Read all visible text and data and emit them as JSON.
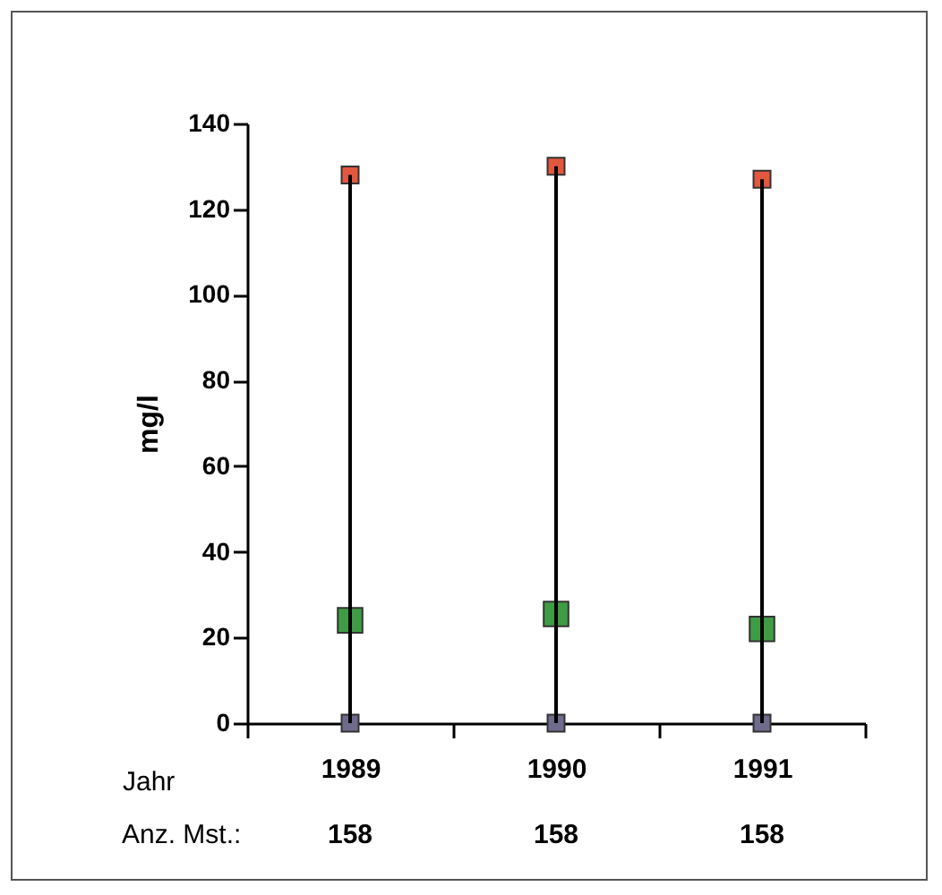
{
  "chart_data": {
    "type": "scatter",
    "categories": [
      "1989",
      "1990",
      "1991"
    ],
    "xlabel": "Jahr",
    "ylabel": "mg/l",
    "ylim": [
      0,
      140
    ],
    "yticks": [
      0,
      20,
      40,
      60,
      80,
      100,
      120,
      140
    ],
    "series": [
      {
        "color": "#e2583e",
        "marker": "square",
        "values": [
          128,
          130,
          127
        ]
      },
      {
        "color": "#3f9c45",
        "marker": "square",
        "values": [
          24,
          25.5,
          22
        ]
      },
      {
        "color": "#6e6b8c",
        "marker": "square",
        "values": [
          0,
          0,
          0
        ]
      },
      {
        "type": "bar",
        "color": "#000000",
        "values": [
          128,
          130,
          127
        ]
      }
    ],
    "annotations": [
      "Anz. Mst.:",
      "158",
      "158",
      "158"
    ]
  }
}
